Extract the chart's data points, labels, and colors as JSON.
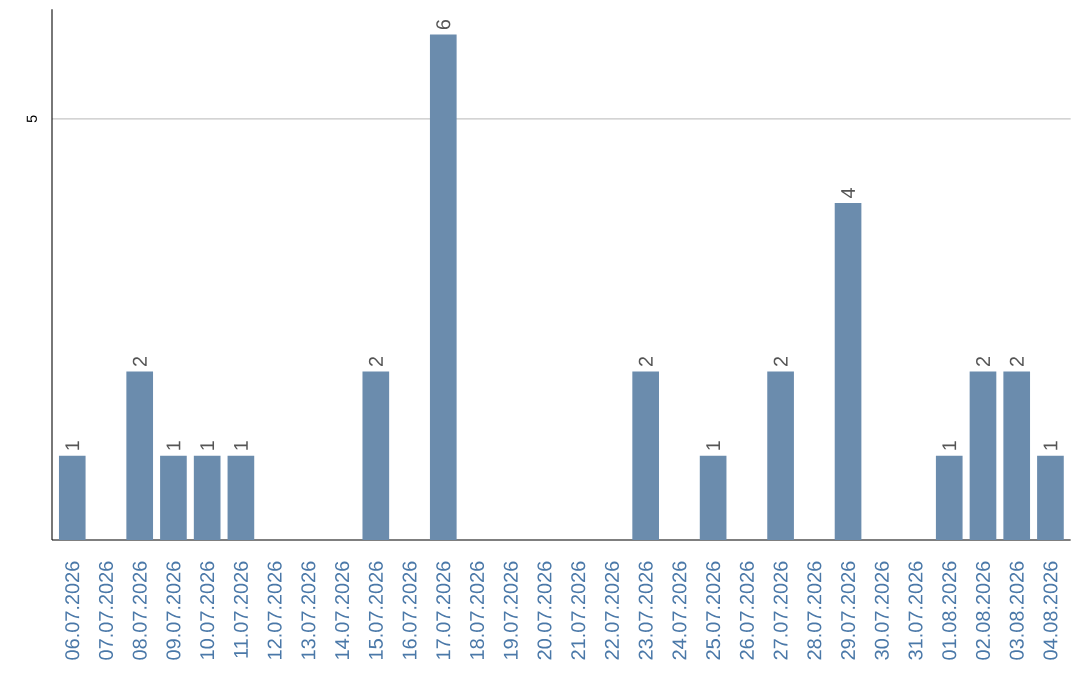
{
  "chart_data": {
    "type": "bar",
    "categories": [
      "06.07.2026",
      "07.07.2026",
      "08.07.2026",
      "09.07.2026",
      "10.07.2026",
      "11.07.2026",
      "12.07.2026",
      "13.07.2026",
      "14.07.2026",
      "15.07.2026",
      "16.07.2026",
      "17.07.2026",
      "18.07.2026",
      "19.07.2026",
      "20.07.2026",
      "21.07.2026",
      "22.07.2026",
      "23.07.2026",
      "24.07.2026",
      "25.07.2026",
      "26.07.2026",
      "27.07.2026",
      "28.07.2026",
      "29.07.2026",
      "30.07.2026",
      "31.07.2026",
      "01.08.2026",
      "02.08.2026",
      "03.08.2026",
      "04.08.2026"
    ],
    "values": [
      1,
      0,
      2,
      1,
      1,
      1,
      0,
      0,
      0,
      2,
      0,
      6,
      0,
      0,
      0,
      0,
      0,
      2,
      0,
      1,
      0,
      2,
      0,
      4,
      0,
      0,
      1,
      2,
      2,
      1
    ],
    "value_labels": [
      "1",
      null,
      "2",
      "1",
      "1",
      "1",
      null,
      null,
      null,
      "2",
      null,
      "6",
      null,
      null,
      null,
      null,
      null,
      "2",
      null,
      "1",
      null,
      "2",
      null,
      "4",
      null,
      null,
      "1",
      "2",
      "2",
      "1"
    ],
    "color": "#6b8cad",
    "ylim": [
      0,
      6.3
    ],
    "yticks": [
      5
    ],
    "grid": "y"
  }
}
